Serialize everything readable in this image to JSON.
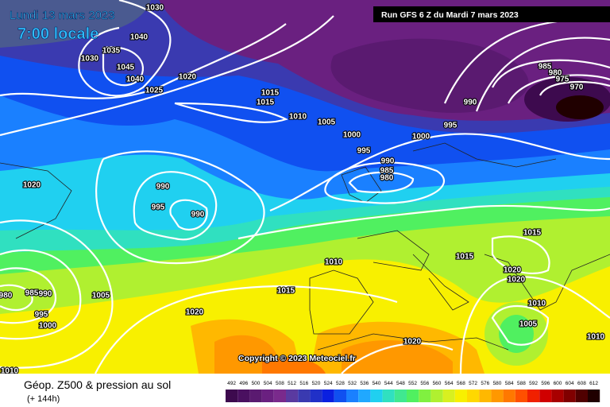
{
  "header": {
    "date": "Lundi 13 mars 2023",
    "time": "7:00 locale",
    "run": "Run GFS 6 Z du Mardi 7 mars 2023"
  },
  "isobar_labels": [
    1030,
    1040,
    1030,
    1035,
    1045,
    1040,
    1025,
    1020,
    1015,
    1015,
    1010,
    1005,
    1000,
    995,
    1000,
    990,
    985,
    980,
    995,
    990,
    985,
    980,
    975,
    970,
    1020,
    990,
    995,
    990,
    1010,
    1015,
    1015,
    1015,
    1020,
    1020,
    1010,
    1005,
    1010,
    1005,
    1020,
    1020,
    1010,
    980,
    985,
    990,
    995,
    1000
  ],
  "copyright": "Copyright © 2023 Meteociel.fr",
  "caption": {
    "title": "Géop. Z500 & pression au sol",
    "lead": "(+ 144h)"
  },
  "scale": {
    "labels": [
      492,
      496,
      500,
      504,
      508,
      512,
      516,
      520,
      524,
      528,
      532,
      536,
      540,
      544,
      548,
      552,
      556,
      560,
      564,
      568,
      572,
      576,
      580,
      584,
      588,
      592,
      596,
      600,
      604,
      608,
      612
    ],
    "colors": [
      "#3d0a4e",
      "#4a1060",
      "#5a1a70",
      "#6a2080",
      "#7a2a8c",
      "#5a3aa0",
      "#3a3ab0",
      "#2030c8",
      "#0a20e0",
      "#1050f0",
      "#1a80ff",
      "#20a8ff",
      "#20d0f0",
      "#30e0c0",
      "#40e890",
      "#50f060",
      "#80f040",
      "#b0f030",
      "#d8f020",
      "#f8f000",
      "#ffd800",
      "#ffb800",
      "#ff9800",
      "#ff7800",
      "#ff5000",
      "#f02000",
      "#d00000",
      "#a80000",
      "#800000",
      "#500000",
      "#200000"
    ]
  }
}
